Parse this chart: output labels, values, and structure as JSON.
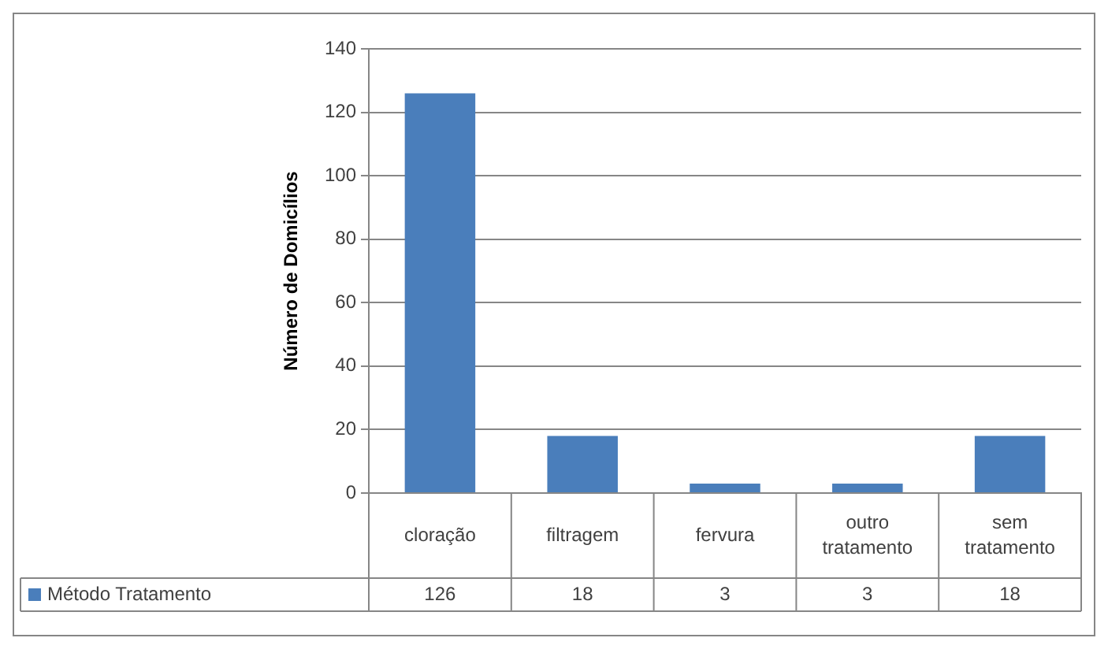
{
  "chart_data": {
    "type": "bar",
    "ylabel": "Número de Domicílios",
    "categories": [
      "cloração",
      "filtragem",
      "fervura",
      "outro tratamento",
      "sem tratamento"
    ],
    "series": [
      {
        "name": "Método Tratamento",
        "color": "#4a7ebb",
        "values": [
          126,
          18,
          3,
          3,
          18
        ]
      }
    ],
    "ylim": [
      0,
      140
    ],
    "yticks": [
      0,
      20,
      40,
      60,
      80,
      100,
      120,
      140
    ],
    "grid": "y",
    "legend": "bottom",
    "data_labels": true
  }
}
